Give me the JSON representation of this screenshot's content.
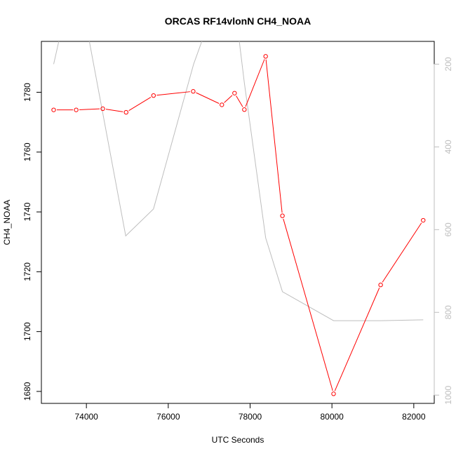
{
  "chart_data": {
    "type": "line",
    "title": "ORCAS RF14vlonN CH4_NOAA",
    "xlabel": "UTC Seconds",
    "ylabel": "CH4_NOAA",
    "xlim": [
      72900,
      82500
    ],
    "ylim": [
      1676,
      1797
    ],
    "x_ticks": [
      74000,
      76000,
      78000,
      80000,
      82000
    ],
    "y_ticks": [
      1680,
      1700,
      1720,
      1740,
      1760,
      1780
    ],
    "y2_ticks": [
      200,
      400,
      600,
      800,
      1000
    ],
    "y2lim": [
      1020,
      145
    ],
    "grid": false,
    "series": [
      {
        "name": "",
        "role": "primary",
        "color": "#ff0000",
        "marker": "open-circle",
        "x": [
          73200,
          73750,
          74400,
          74970,
          75640,
          76610,
          77310,
          77620,
          77860,
          78380,
          78790,
          80040,
          81190,
          82230
        ],
        "y": [
          1774.1,
          1774.1,
          1774.5,
          1773.3,
          1778.9,
          1780.3,
          1775.8,
          1779.7,
          1774.2,
          1792.0,
          1738.7,
          1679.2,
          1715.6,
          1737.2
        ]
      },
      {
        "name": "",
        "role": "secondary",
        "color": "#bebebe",
        "marker": "none",
        "x": [
          73200,
          73530,
          73930,
          74960,
          75640,
          76620,
          77310,
          77620,
          77860,
          78380,
          78790,
          80040,
          81190,
          82230
        ],
        "y": [
          200,
          55,
          70,
          615,
          550,
          200,
          10,
          50,
          245,
          620,
          750,
          820,
          820,
          818
        ]
      }
    ]
  }
}
